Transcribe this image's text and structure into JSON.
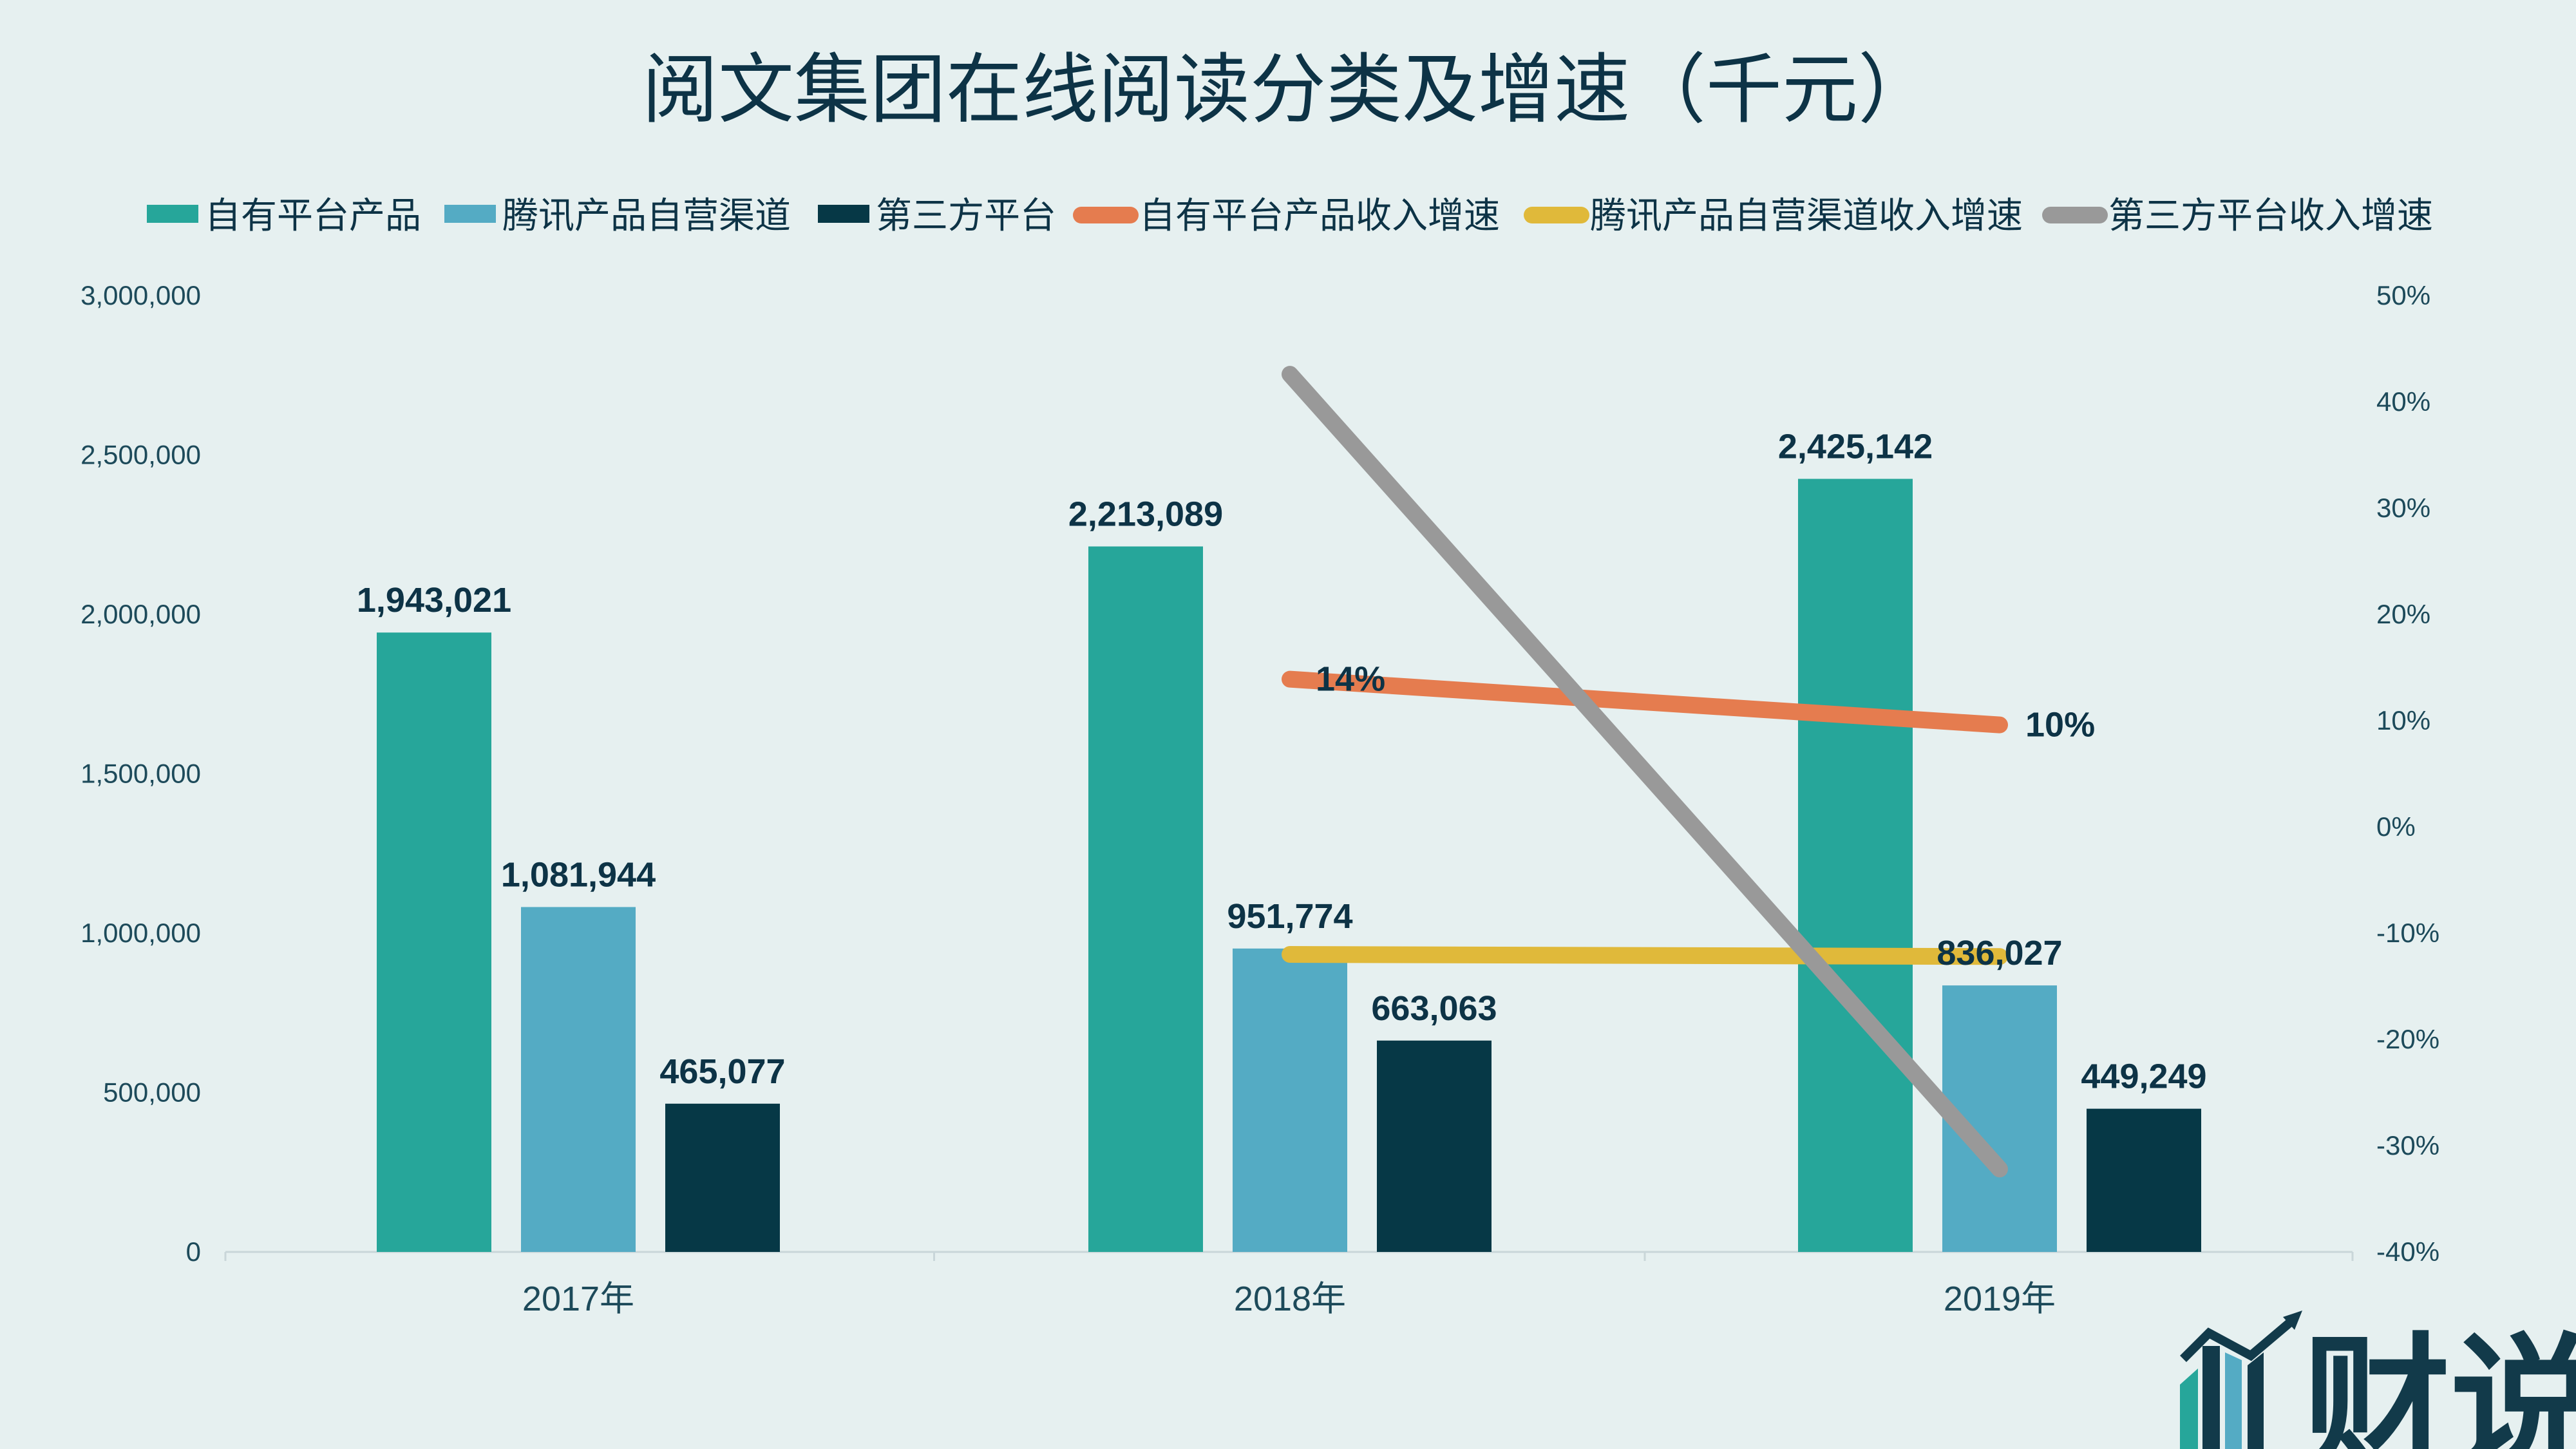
{
  "chart_data": {
    "type": "bar",
    "title": "阅文集团在线阅读分类及增速（千元）",
    "categories": [
      "2017年",
      "2018年",
      "2019年"
    ],
    "series": [
      {
        "name": "自有平台产品",
        "kind": "bar",
        "axis": "left",
        "color": "#26a69a",
        "values": [
          1943021,
          2213089,
          2425142
        ],
        "labels": [
          "1,943,021",
          "2,213,089",
          "2,425,142"
        ]
      },
      {
        "name": "腾讯产品自营渠道",
        "kind": "bar",
        "axis": "left",
        "color": "#54abc4",
        "values": [
          1081944,
          951774,
          836027
        ],
        "labels": [
          "1,081,944",
          "951,774",
          "836,027"
        ]
      },
      {
        "name": "第三方平台",
        "kind": "bar",
        "axis": "left",
        "color": "#063846",
        "values": [
          465077,
          663063,
          449249
        ],
        "labels": [
          "465,077",
          "663,063",
          "449,249"
        ]
      },
      {
        "name": "自有平台产品收入增速",
        "kind": "line",
        "axis": "right",
        "color": "#e57c4f",
        "values": [
          null,
          13.9,
          9.6
        ],
        "labels": [
          null,
          "14%",
          "10%"
        ]
      },
      {
        "name": "腾讯产品自营渠道收入增速",
        "kind": "line",
        "axis": "right",
        "color": "#e0b93a",
        "values": [
          null,
          -12.0,
          -12.2
        ],
        "labels": [
          null,
          null,
          null
        ]
      },
      {
        "name": "第三方平台收入增速",
        "kind": "line",
        "axis": "right",
        "color": "#999999",
        "values": [
          null,
          42.6,
          -32.2
        ],
        "labels": [
          null,
          null,
          null
        ]
      }
    ],
    "y_left": {
      "range": [
        0,
        3000000
      ],
      "ticks": [
        0,
        500000,
        1000000,
        1500000,
        2000000,
        2500000,
        3000000
      ],
      "tick_labels": [
        "0",
        "500,000",
        "1,000,000",
        "1,500,000",
        "2,000,000",
        "2,500,000",
        "3,000,000"
      ]
    },
    "y_right": {
      "range": [
        -40,
        50
      ],
      "ticks": [
        -40,
        -30,
        -20,
        -10,
        0,
        10,
        20,
        30,
        40,
        50
      ],
      "tick_labels": [
        "-40%",
        "-30%",
        "-20%",
        "-10%",
        "0%",
        "10%",
        "20%",
        "30%",
        "40%",
        "50%"
      ]
    },
    "legend": "top",
    "grid": false
  },
  "logo": {
    "text": "财说",
    "colors": [
      "#26a69a",
      "#123a4a",
      "#54abc4"
    ]
  }
}
